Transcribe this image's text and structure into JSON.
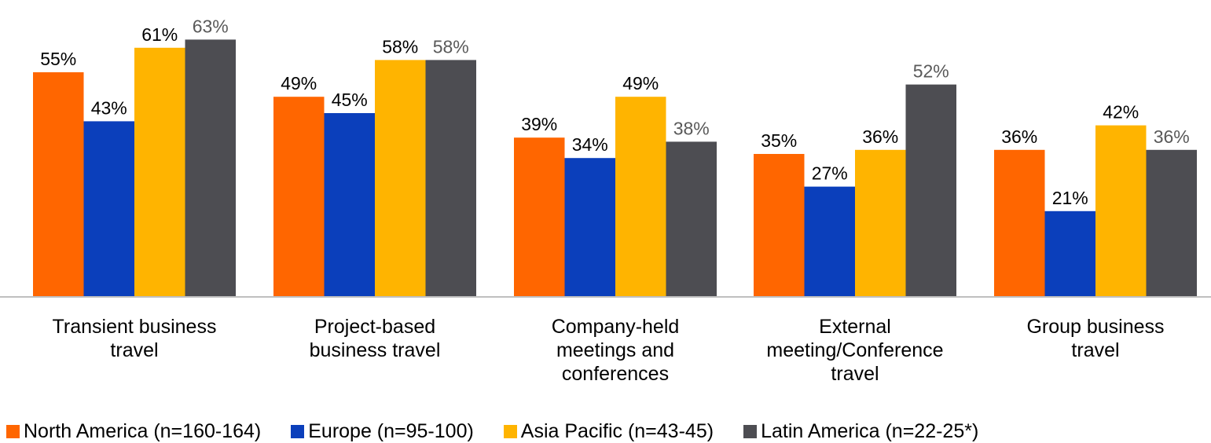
{
  "chart_data": {
    "type": "bar",
    "categories": [
      [
        "Transient business",
        "travel"
      ],
      [
        "Project-based",
        "business travel"
      ],
      [
        "Company-held",
        "meetings and",
        "conferences"
      ],
      [
        "External",
        "meeting/Conference",
        "travel"
      ],
      [
        "Group business",
        "travel"
      ]
    ],
    "series": [
      {
        "name": "North America (n=160-164)",
        "color": "#FF6600",
        "label_color": "#000000",
        "values": [
          55,
          49,
          39,
          35,
          36
        ],
        "labels": [
          "55%",
          "49%",
          "39%",
          "35%",
          "36%"
        ]
      },
      {
        "name": "Europe (n=95-100)",
        "color": "#0B3FBB",
        "label_color": "#000000",
        "values": [
          43,
          45,
          34,
          27,
          21
        ],
        "labels": [
          "43%",
          "45%",
          "34%",
          "27%",
          "21%"
        ]
      },
      {
        "name": "Asia Pacific (n=43-45)",
        "color": "#FFB400",
        "label_color": "#000000",
        "values": [
          61,
          58,
          49,
          36,
          42
        ],
        "labels": [
          "61%",
          "58%",
          "49%",
          "36%",
          "42%"
        ]
      },
      {
        "name": "Latin America (n=22-25*)",
        "color": "#4D4D52",
        "label_color": "#595959",
        "values": [
          63,
          58,
          38,
          52,
          36
        ],
        "labels": [
          "63%",
          "58%",
          "38%",
          "52%",
          "36%"
        ]
      }
    ],
    "ylim": [
      0,
      63
    ],
    "grid": false,
    "legend_position": "bottom"
  }
}
